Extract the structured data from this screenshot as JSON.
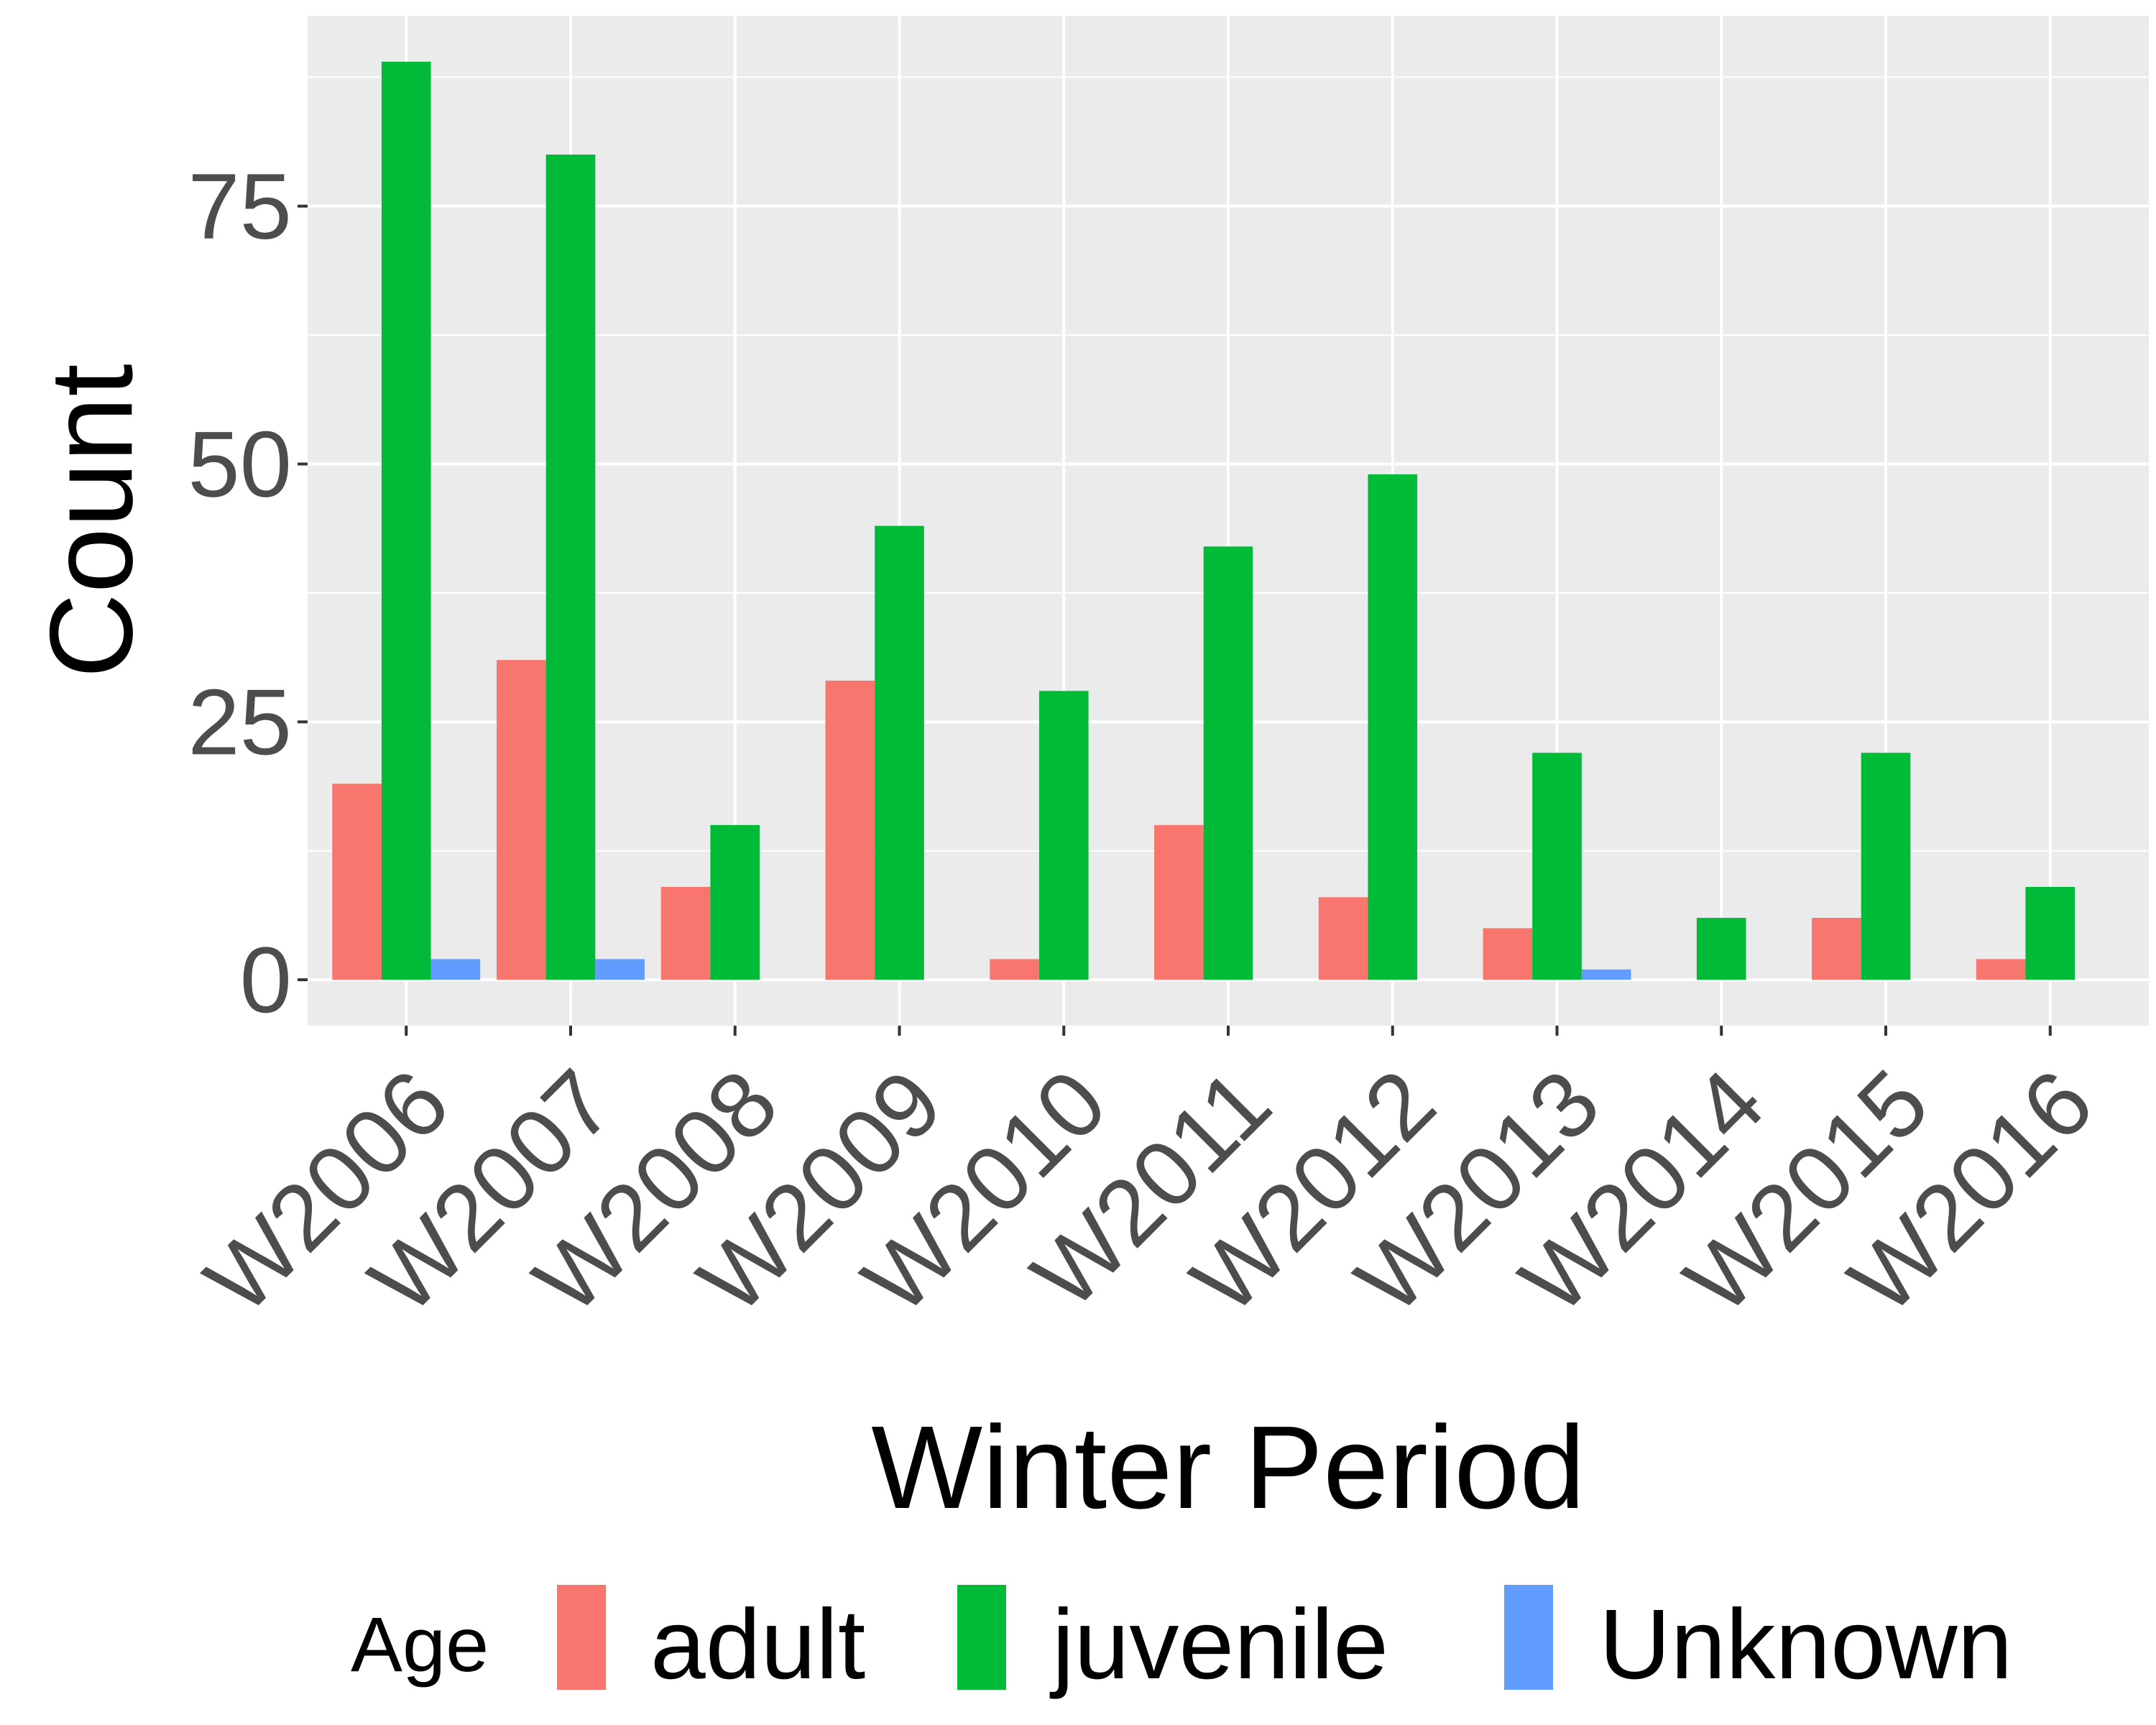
{
  "chart_data": {
    "type": "bar",
    "xlabel": "Winter Period",
    "ylabel": "Count",
    "categories": [
      "W2006",
      "W2007",
      "W2008",
      "W2009",
      "W2010",
      "W2011",
      "W2012",
      "W2013",
      "W2014",
      "W2015",
      "W2016"
    ],
    "series": [
      {
        "name": "adult",
        "color": "#F8766D",
        "values": [
          19,
          31,
          9,
          29,
          2,
          15,
          8,
          5,
          null,
          6,
          2
        ]
      },
      {
        "name": "juvenile",
        "color": "#00BA38",
        "values": [
          89,
          80,
          15,
          44,
          28,
          42,
          49,
          22,
          6,
          22,
          9
        ]
      },
      {
        "name": "Unknown",
        "color": "#619CFF",
        "values": [
          2,
          2,
          null,
          null,
          null,
          null,
          null,
          1,
          null,
          null,
          null
        ]
      }
    ],
    "legend_title": "Age",
    "legend_position": "bottom",
    "yticks": [
      0,
      25,
      50,
      75
    ],
    "ylim": [
      -4.45,
      93.45
    ],
    "grid": true,
    "panel_background": "#EBEBEB",
    "grid_color": "#FFFFFF"
  }
}
